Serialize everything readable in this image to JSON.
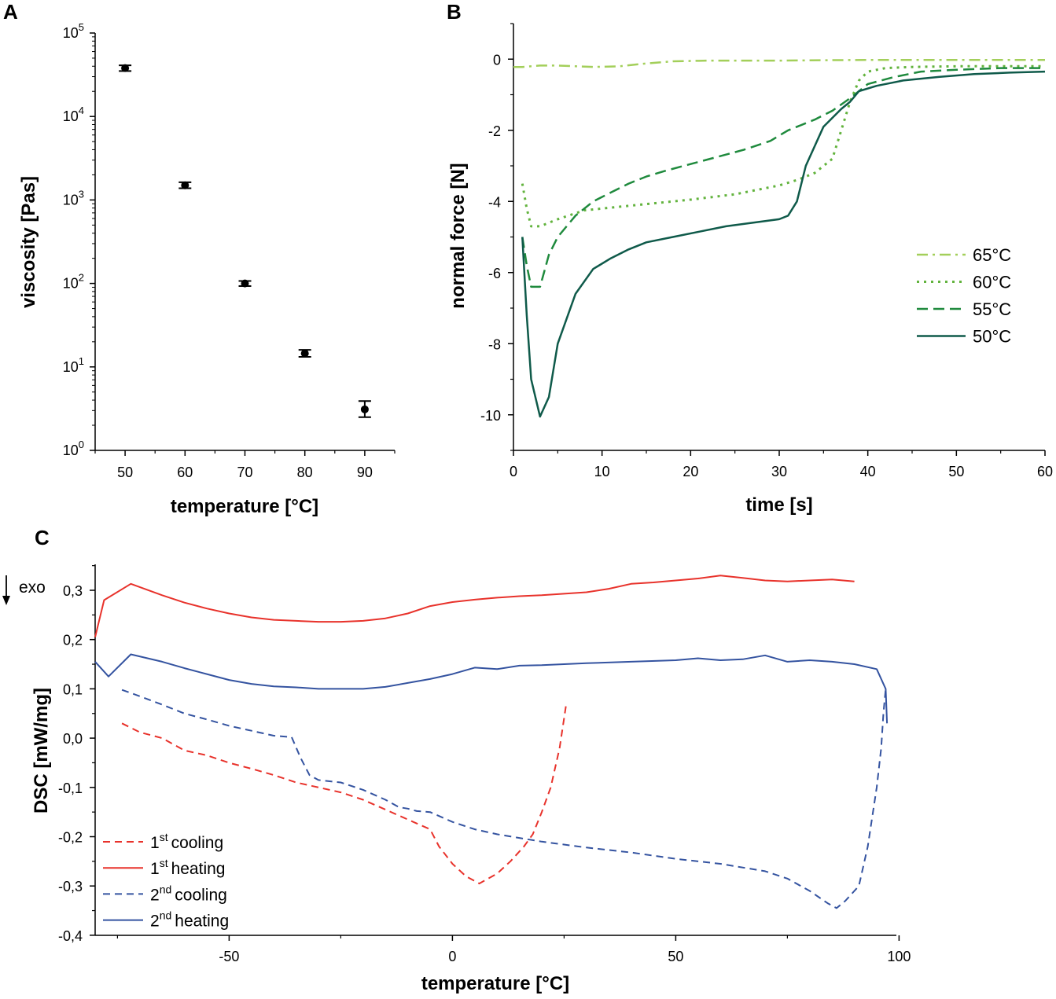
{
  "chart_data": [
    {
      "panel": "A",
      "type": "scatter",
      "xlabel": "temperature [°C]",
      "ylabel": "viscosity [Pas]",
      "yscale": "log",
      "xlim": [
        45,
        95
      ],
      "ylim": [
        1,
        100000
      ],
      "xticks": [
        "50",
        "60",
        "70",
        "80",
        "90"
      ],
      "yticks": [
        {
          "base": "10",
          "exp": "0"
        },
        {
          "base": "10",
          "exp": "1"
        },
        {
          "base": "10",
          "exp": "2"
        },
        {
          "base": "10",
          "exp": "3"
        },
        {
          "base": "10",
          "exp": "4"
        },
        {
          "base": "10",
          "exp": "5"
        }
      ],
      "points": [
        {
          "x": 50,
          "y": 38000,
          "ylo": 35000,
          "yhi": 41000
        },
        {
          "x": 60,
          "y": 1500,
          "ylo": 1380,
          "yhi": 1630
        },
        {
          "x": 70,
          "y": 100,
          "ylo": 93,
          "yhi": 107
        },
        {
          "x": 80,
          "y": 14.5,
          "ylo": 13.2,
          "yhi": 16
        },
        {
          "x": 90,
          "y": 3.1,
          "ylo": 2.5,
          "yhi": 3.9
        }
      ],
      "color": "#000000"
    },
    {
      "panel": "B",
      "type": "line",
      "xlabel": "time [s]",
      "ylabel": "normal force [N]",
      "xlim": [
        0,
        60
      ],
      "ylim": [
        -11,
        1
      ],
      "xticks": [
        "0",
        "10",
        "20",
        "30",
        "40",
        "50",
        "60"
      ],
      "yticks": [
        "0",
        "-2",
        "-4",
        "-6",
        "-8",
        "-10"
      ],
      "series": [
        {
          "name": "65°C",
          "color": "#a3cf5a",
          "dash": "14 6 3 6",
          "width": 2.5,
          "x": [
            0,
            1,
            3,
            5,
            7,
            9,
            12,
            15,
            18,
            22,
            30,
            40,
            50,
            60
          ],
          "y": [
            -0.22,
            -0.22,
            -0.18,
            -0.18,
            -0.2,
            -0.22,
            -0.2,
            -0.12,
            -0.06,
            -0.04,
            -0.04,
            -0.02,
            -0.02,
            -0.02
          ]
        },
        {
          "name": "60°C",
          "color": "#62b33d",
          "dash": "3 6",
          "width": 3,
          "x": [
            1,
            1.5,
            2,
            3,
            5,
            8,
            12,
            16,
            20,
            25,
            30,
            32,
            34,
            36,
            37,
            38,
            39,
            40,
            42,
            45,
            50,
            55,
            60
          ],
          "y": [
            -3.5,
            -4.2,
            -4.7,
            -4.7,
            -4.5,
            -4.25,
            -4.15,
            -4.05,
            -3.95,
            -3.8,
            -3.55,
            -3.4,
            -3.2,
            -2.8,
            -2.0,
            -1.2,
            -0.6,
            -0.35,
            -0.25,
            -0.22,
            -0.2,
            -0.2,
            -0.2
          ]
        },
        {
          "name": "55°C",
          "color": "#1f8a3d",
          "dash": "14 7",
          "width": 2.5,
          "x": [
            1,
            1.5,
            2,
            3,
            4,
            5,
            7,
            9,
            11,
            13,
            15,
            17,
            20,
            23,
            26,
            29,
            31,
            34,
            36,
            38,
            40,
            43,
            46,
            50,
            55,
            60
          ],
          "y": [
            -5.0,
            -5.8,
            -6.4,
            -6.4,
            -5.5,
            -5.0,
            -4.4,
            -4.0,
            -3.75,
            -3.5,
            -3.3,
            -3.15,
            -2.95,
            -2.75,
            -2.55,
            -2.3,
            -2.0,
            -1.7,
            -1.45,
            -1.1,
            -0.7,
            -0.5,
            -0.35,
            -0.3,
            -0.25,
            -0.25
          ]
        },
        {
          "name": "50°C",
          "color": "#0f5a4a",
          "dash": "",
          "width": 2.5,
          "x": [
            1,
            1.5,
            2,
            3,
            4,
            5,
            7,
            9,
            11,
            13,
            15,
            18,
            21,
            24,
            27,
            30,
            31,
            32,
            33,
            35,
            37,
            38,
            39,
            41,
            44,
            48,
            52,
            56,
            60
          ],
          "y": [
            -5.0,
            -7.2,
            -9.0,
            -10.05,
            -9.5,
            -8.0,
            -6.6,
            -5.9,
            -5.6,
            -5.35,
            -5.15,
            -5.0,
            -4.85,
            -4.7,
            -4.6,
            -4.5,
            -4.4,
            -4.0,
            -3.0,
            -1.9,
            -1.4,
            -1.2,
            -0.9,
            -0.75,
            -0.6,
            -0.5,
            -0.42,
            -0.38,
            -0.35
          ]
        }
      ],
      "legend_position": "center-right"
    },
    {
      "panel": "C",
      "type": "line",
      "xlabel": "temperature [°C]",
      "ylabel": "DSC [mW/mg]",
      "annotation": "exo",
      "xlim": [
        -80,
        100
      ],
      "ylim": [
        -0.4,
        0.35
      ],
      "xticks": [
        "-50",
        "0",
        "50",
        "100"
      ],
      "yticks": [
        "0,3",
        "0,2",
        "0,1",
        "0,0",
        "-0,1",
        "-0,2",
        "-0,3",
        "-0,4"
      ],
      "series": [
        {
          "name": "1st cooling",
          "label": "cooling",
          "ordinal": "1",
          "sup": "st",
          "color": "#e8322b",
          "dash": "9 6",
          "x": [
            -74,
            -70,
            -65,
            -60,
            -55,
            -50,
            -45,
            -40,
            -35,
            -30,
            -25,
            -20,
            -15,
            -10,
            -5,
            -3,
            0,
            3,
            6,
            10,
            13,
            16,
            18,
            20,
            22,
            24,
            25.5
          ],
          "y": [
            0.03,
            0.012,
            0.0,
            -0.025,
            -0.035,
            -0.05,
            -0.062,
            -0.075,
            -0.09,
            -0.1,
            -0.11,
            -0.125,
            -0.145,
            -0.165,
            -0.185,
            -0.22,
            -0.255,
            -0.28,
            -0.295,
            -0.275,
            -0.25,
            -0.22,
            -0.195,
            -0.15,
            -0.1,
            -0.02,
            0.07
          ]
        },
        {
          "name": "1st heating",
          "label": "heating",
          "ordinal": "1",
          "sup": "st",
          "color": "#e8322b",
          "dash": "",
          "x": [
            -80,
            -78,
            -72,
            -65,
            -60,
            -55,
            -50,
            -45,
            -40,
            -35,
            -30,
            -25,
            -20,
            -15,
            -10,
            -5,
            0,
            5,
            10,
            15,
            20,
            25,
            30,
            35,
            40,
            45,
            50,
            55,
            60,
            65,
            70,
            75,
            80,
            85,
            90
          ],
          "y": [
            0.205,
            0.28,
            0.313,
            0.29,
            0.275,
            0.263,
            0.253,
            0.245,
            0.24,
            0.238,
            0.236,
            0.236,
            0.238,
            0.243,
            0.253,
            0.268,
            0.276,
            0.281,
            0.285,
            0.288,
            0.29,
            0.293,
            0.296,
            0.303,
            0.313,
            0.316,
            0.32,
            0.324,
            0.33,
            0.325,
            0.32,
            0.318,
            0.32,
            0.322,
            0.318
          ]
        },
        {
          "name": "2nd cooling",
          "label": "cooling",
          "ordinal": "2",
          "sup": "nd",
          "color": "#3453a0",
          "dash": "9 6",
          "x": [
            -74,
            -70,
            -65,
            -60,
            -55,
            -50,
            -45,
            -40,
            -36,
            -34,
            -32,
            -30,
            -25,
            -20,
            -15,
            -12,
            -10,
            -8,
            -5,
            0,
            5,
            10,
            20,
            30,
            40,
            50,
            60,
            70,
            75,
            80,
            84,
            86,
            88,
            91,
            93,
            95,
            96,
            96.5,
            97
          ],
          "y": [
            0.098,
            0.085,
            0.068,
            0.05,
            0.038,
            0.025,
            0.015,
            0.005,
            0.002,
            -0.04,
            -0.075,
            -0.085,
            -0.09,
            -0.105,
            -0.125,
            -0.14,
            -0.143,
            -0.148,
            -0.15,
            -0.17,
            -0.185,
            -0.195,
            -0.21,
            -0.222,
            -0.232,
            -0.245,
            -0.255,
            -0.27,
            -0.285,
            -0.31,
            -0.335,
            -0.345,
            -0.33,
            -0.3,
            -0.22,
            -0.1,
            -0.02,
            0.05,
            0.1
          ]
        },
        {
          "name": "2nd heating",
          "label": "heating",
          "ordinal": "2",
          "sup": "nd",
          "color": "#3453a0",
          "dash": "",
          "x": [
            -80,
            -77,
            -72,
            -65,
            -60,
            -55,
            -50,
            -45,
            -40,
            -35,
            -30,
            -25,
            -20,
            -15,
            -10,
            -5,
            0,
            5,
            10,
            15,
            20,
            30,
            40,
            50,
            55,
            60,
            65,
            70,
            75,
            80,
            85,
            90,
            95,
            97,
            97.3
          ],
          "y": [
            0.155,
            0.125,
            0.17,
            0.155,
            0.142,
            0.13,
            0.118,
            0.11,
            0.105,
            0.103,
            0.1,
            0.1,
            0.1,
            0.104,
            0.112,
            0.12,
            0.13,
            0.143,
            0.14,
            0.147,
            0.148,
            0.152,
            0.155,
            0.158,
            0.162,
            0.158,
            0.16,
            0.168,
            0.155,
            0.158,
            0.155,
            0.15,
            0.14,
            0.1,
            0.03
          ]
        }
      ],
      "legend_position": "bottom-left"
    }
  ]
}
